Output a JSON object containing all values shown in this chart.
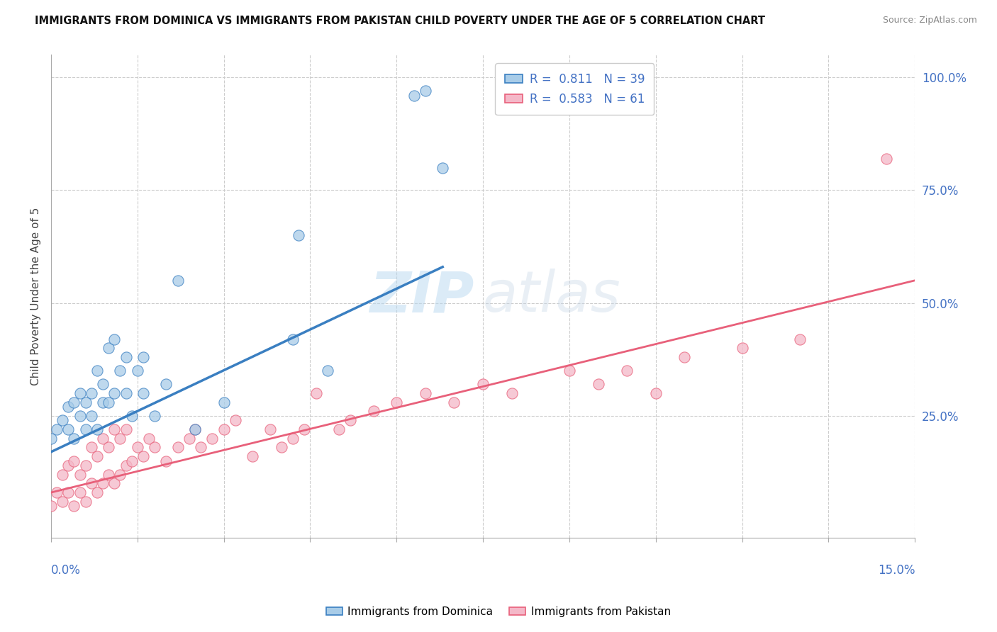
{
  "title": "IMMIGRANTS FROM DOMINICA VS IMMIGRANTS FROM PAKISTAN CHILD POVERTY UNDER THE AGE OF 5 CORRELATION CHART",
  "source": "Source: ZipAtlas.com",
  "ylabel": "Child Poverty Under the Age of 5",
  "right_yticks": [
    0.0,
    0.25,
    0.5,
    0.75,
    1.0
  ],
  "right_yticklabels": [
    "",
    "25.0%",
    "50.0%",
    "75.0%",
    "100.0%"
  ],
  "dominica_R": 0.811,
  "dominica_N": 39,
  "pakistan_R": 0.583,
  "pakistan_N": 61,
  "dominica_color": "#a8cce8",
  "pakistan_color": "#f4b8c8",
  "dominica_line_color": "#3a7fc1",
  "pakistan_line_color": "#e8607a",
  "watermark_zip": "ZIP",
  "watermark_atlas": "atlas",
  "xlim": [
    0.0,
    0.15
  ],
  "ylim": [
    -0.02,
    1.05
  ],
  "dominica_x": [
    0.0,
    0.001,
    0.002,
    0.003,
    0.003,
    0.004,
    0.004,
    0.005,
    0.005,
    0.006,
    0.006,
    0.007,
    0.007,
    0.008,
    0.008,
    0.009,
    0.009,
    0.01,
    0.01,
    0.011,
    0.011,
    0.012,
    0.013,
    0.013,
    0.014,
    0.015,
    0.016,
    0.016,
    0.018,
    0.02,
    0.022,
    0.025,
    0.03,
    0.042,
    0.043,
    0.048,
    0.063,
    0.065,
    0.068
  ],
  "dominica_y": [
    0.2,
    0.22,
    0.24,
    0.22,
    0.27,
    0.2,
    0.28,
    0.25,
    0.3,
    0.22,
    0.28,
    0.25,
    0.3,
    0.22,
    0.35,
    0.28,
    0.32,
    0.28,
    0.4,
    0.3,
    0.42,
    0.35,
    0.3,
    0.38,
    0.25,
    0.35,
    0.3,
    0.38,
    0.25,
    0.32,
    0.55,
    0.22,
    0.28,
    0.42,
    0.65,
    0.35,
    0.96,
    0.97,
    0.8
  ],
  "pakistan_x": [
    0.0,
    0.001,
    0.002,
    0.002,
    0.003,
    0.003,
    0.004,
    0.004,
    0.005,
    0.005,
    0.006,
    0.006,
    0.007,
    0.007,
    0.008,
    0.008,
    0.009,
    0.009,
    0.01,
    0.01,
    0.011,
    0.011,
    0.012,
    0.012,
    0.013,
    0.013,
    0.014,
    0.015,
    0.016,
    0.017,
    0.018,
    0.02,
    0.022,
    0.024,
    0.025,
    0.026,
    0.028,
    0.03,
    0.032,
    0.035,
    0.038,
    0.04,
    0.042,
    0.044,
    0.046,
    0.05,
    0.052,
    0.056,
    0.06,
    0.065,
    0.07,
    0.075,
    0.08,
    0.09,
    0.095,
    0.1,
    0.105,
    0.11,
    0.12,
    0.13,
    0.145
  ],
  "pakistan_y": [
    0.05,
    0.08,
    0.06,
    0.12,
    0.08,
    0.14,
    0.05,
    0.15,
    0.08,
    0.12,
    0.06,
    0.14,
    0.1,
    0.18,
    0.08,
    0.16,
    0.1,
    0.2,
    0.12,
    0.18,
    0.1,
    0.22,
    0.12,
    0.2,
    0.14,
    0.22,
    0.15,
    0.18,
    0.16,
    0.2,
    0.18,
    0.15,
    0.18,
    0.2,
    0.22,
    0.18,
    0.2,
    0.22,
    0.24,
    0.16,
    0.22,
    0.18,
    0.2,
    0.22,
    0.3,
    0.22,
    0.24,
    0.26,
    0.28,
    0.3,
    0.28,
    0.32,
    0.3,
    0.35,
    0.32,
    0.35,
    0.3,
    0.38,
    0.4,
    0.42,
    0.82
  ],
  "dom_line_x": [
    0.0,
    0.068
  ],
  "dom_line_y": [
    0.17,
    0.58
  ],
  "pak_line_x": [
    0.0,
    0.15
  ],
  "pak_line_y": [
    0.08,
    0.55
  ]
}
